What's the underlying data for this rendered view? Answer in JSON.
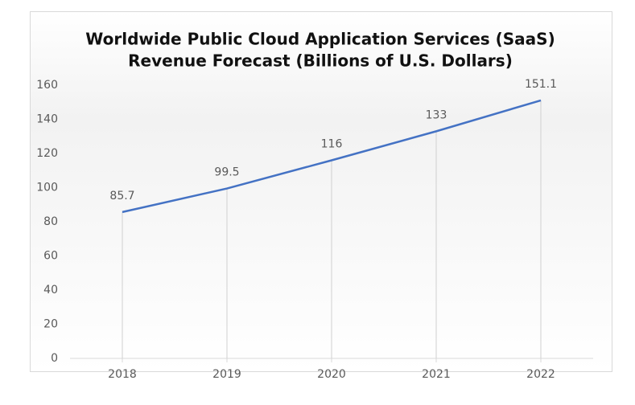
{
  "chart_data": {
    "type": "line",
    "title": [
      "Worldwide Public Cloud Application Services (SaaS)",
      "Revenue Forecast (Billions of U.S. Dollars)"
    ],
    "categories": [
      "2018",
      "2019",
      "2020",
      "2021",
      "2022"
    ],
    "series": [
      {
        "color": "#4472c4",
        "values": [
          85.7,
          99.5,
          116,
          133,
          151.1
        ]
      }
    ],
    "ylim": [
      0,
      160
    ],
    "yticks": [
      0,
      20,
      40,
      60,
      80,
      100,
      120,
      140,
      160
    ],
    "drop_lines": true,
    "data_labels": true
  }
}
